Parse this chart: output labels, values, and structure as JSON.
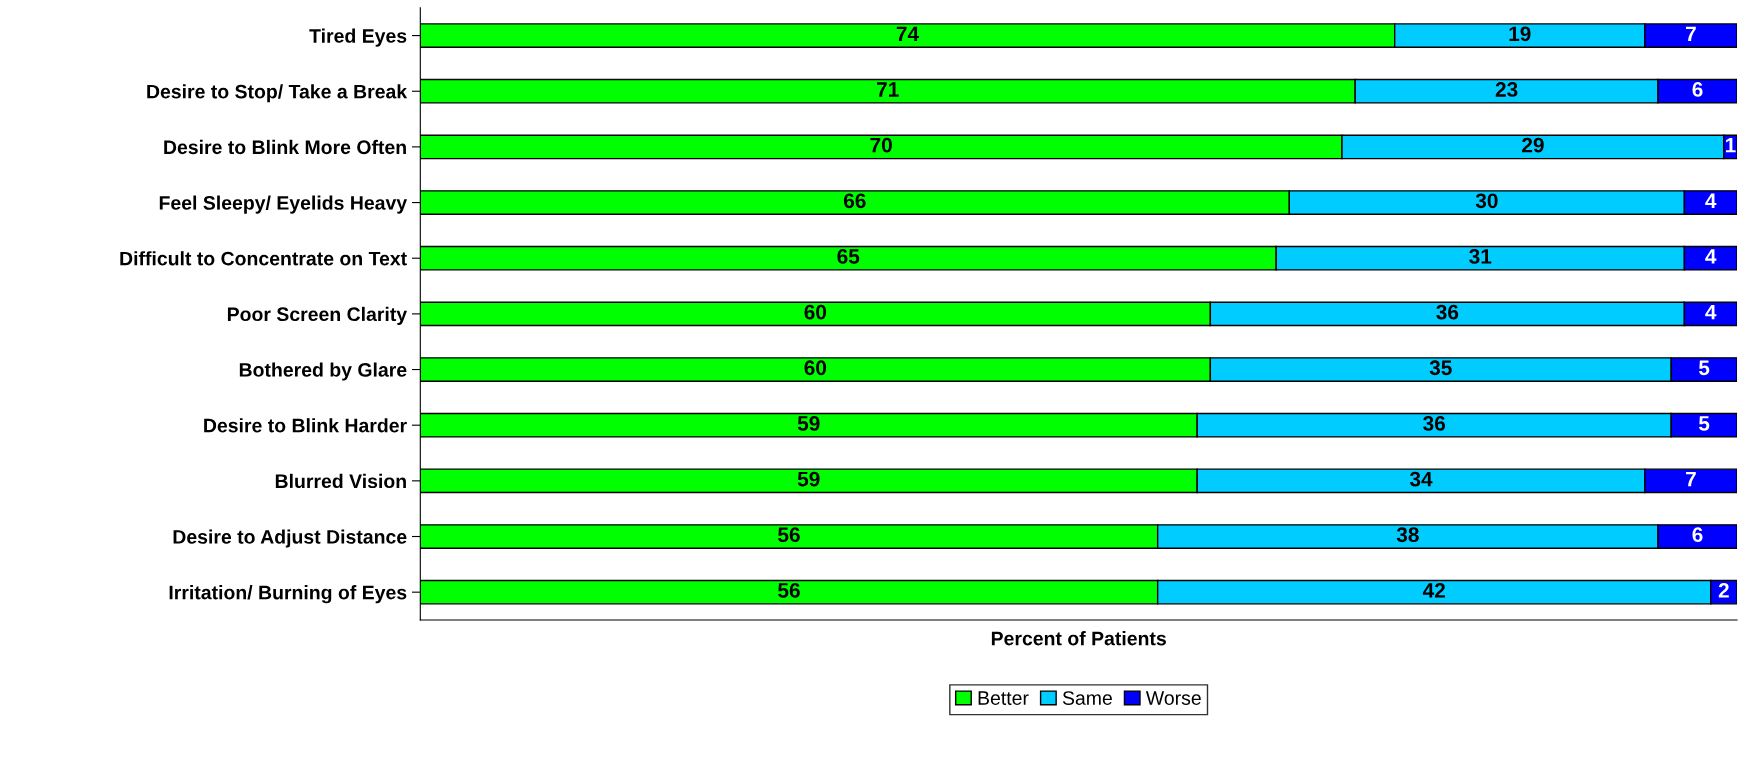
{
  "chart_data": {
    "type": "bar",
    "orientation": "horizontal",
    "stacked": true,
    "xlabel": "Percent of Patients",
    "categories": [
      "Tired Eyes",
      "Desire to Stop/ Take a Break",
      "Desire to Blink More Often",
      "Feel Sleepy/ Eyelids Heavy",
      "Difficult to Concentrate on Text",
      "Poor Screen Clarity",
      "Bothered by Glare",
      "Desire to Blink Harder",
      "Blurred Vision",
      "Desire to Adjust Distance",
      "Irritation/ Burning of Eyes"
    ],
    "series": [
      {
        "name": "Better",
        "color": "#00ff00",
        "values": [
          74,
          71,
          70,
          66,
          65,
          60,
          60,
          59,
          59,
          56,
          56
        ]
      },
      {
        "name": "Same",
        "color": "#00ccff",
        "values": [
          19,
          23,
          29,
          30,
          31,
          36,
          35,
          36,
          34,
          38,
          42
        ]
      },
      {
        "name": "Worse",
        "color": "#0000ff",
        "values": [
          7,
          6,
          1,
          4,
          4,
          4,
          5,
          5,
          7,
          6,
          2
        ]
      }
    ],
    "xlim": [
      0,
      100
    ],
    "tick_labels": "y",
    "data_labels": true,
    "legend": "bottom",
    "grid": false
  }
}
